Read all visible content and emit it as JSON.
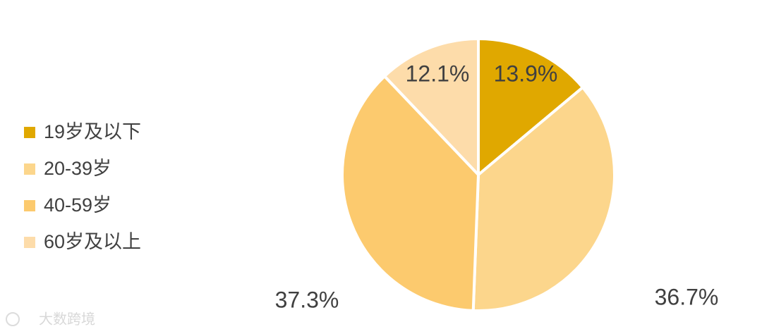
{
  "chart_data": {
    "type": "pie",
    "categories": [
      "19岁及以下",
      "20-39岁",
      "40-59岁",
      "60岁及以上"
    ],
    "values": [
      13.9,
      36.7,
      37.3,
      12.1
    ],
    "value_labels": [
      "13.9%",
      "36.7%",
      "37.3%",
      "12.1%"
    ],
    "colors": [
      "#e0a800",
      "#fcd68c",
      "#fcca6e",
      "#fddcaa"
    ],
    "legend": "left",
    "watermark": "大数跨境"
  }
}
